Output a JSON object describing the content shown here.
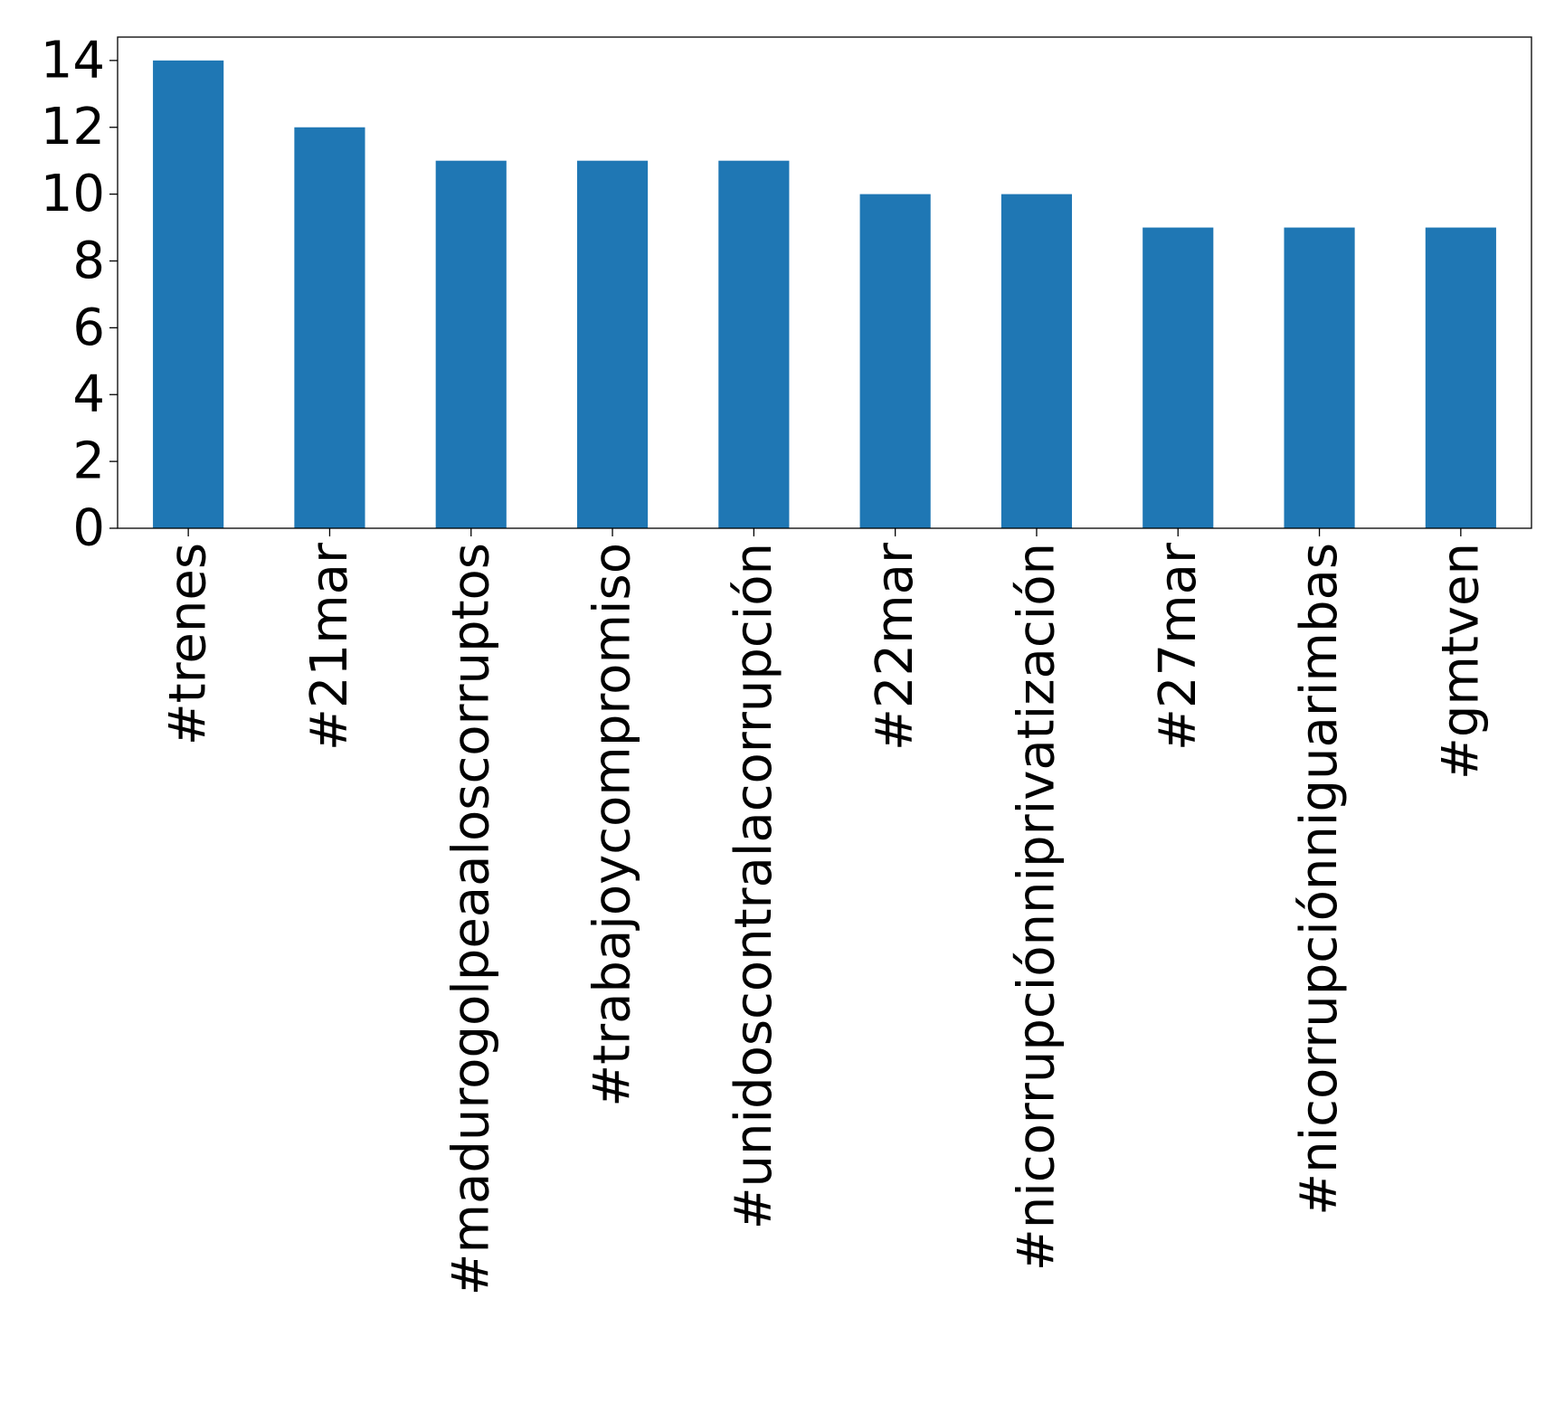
{
  "chart_data": {
    "type": "bar",
    "title": "",
    "xlabel": "",
    "ylabel": "",
    "categories": [
      "#trenes",
      "#21mar",
      "#madurogolpeaaloscorruptos",
      "#trabajoycompromiso",
      "#unidoscontralacorrupción",
      "#22mar",
      "#nicorrupciónniprivatización",
      "#27mar",
      "#nicorrupciónniguarimbas",
      "#gmtven"
    ],
    "values": [
      14,
      12,
      11,
      11,
      11,
      10,
      10,
      9,
      9,
      9
    ],
    "ylim": [
      0,
      14.7
    ],
    "yticks": [
      "0",
      "2",
      "4",
      "6",
      "8",
      "10",
      "12",
      "14"
    ],
    "bar_color": "#1f77b4",
    "grid": false,
    "legend": "none"
  }
}
